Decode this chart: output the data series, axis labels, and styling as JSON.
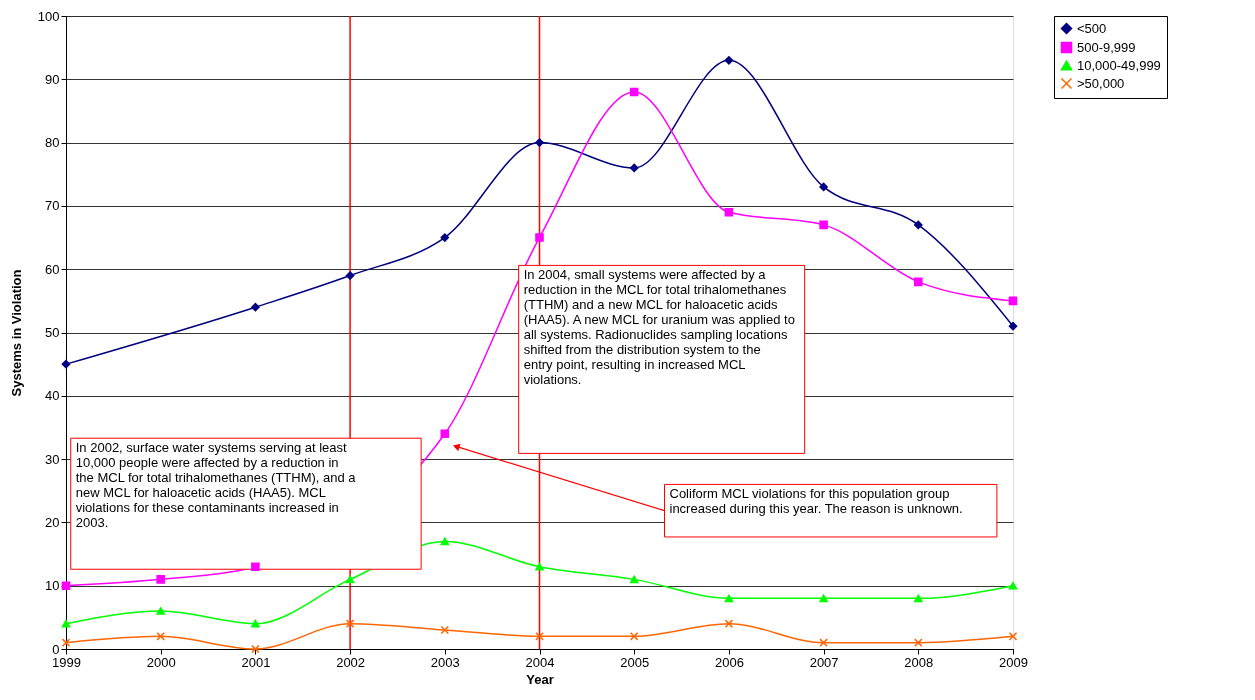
{
  "chart_data": {
    "type": "line",
    "xlabel": "Year",
    "ylabel": "Systems in Violation",
    "x": [
      1999,
      2000,
      2001,
      2002,
      2003,
      2004,
      2005,
      2006,
      2007,
      2008,
      2009
    ],
    "series": [
      {
        "name": "<500",
        "color": "#000080",
        "marker": "diamond",
        "values": [
          45,
          null,
          54,
          59,
          65,
          80,
          76,
          93,
          73,
          67,
          51
        ]
      },
      {
        "name": "500-9,999",
        "color": "#ff00ff",
        "marker": "square",
        "values": [
          10,
          11,
          13,
          null,
          34,
          65,
          88,
          69,
          67,
          58,
          55
        ]
      },
      {
        "name": "10,000-49,999",
        "color": "#00ff00",
        "marker": "triangle",
        "values": [
          4,
          6,
          4,
          11,
          17,
          13,
          11,
          8,
          8,
          8,
          10
        ]
      },
      {
        "name": ">50,000",
        "color": "#ff6600",
        "marker": "cross",
        "values": [
          1,
          2,
          0,
          4,
          3,
          2,
          2,
          4,
          1,
          1,
          2
        ]
      }
    ],
    "xlim": [
      1999,
      2009
    ],
    "xticks": [
      1999,
      2000,
      2001,
      2002,
      2003,
      2004,
      2005,
      2006,
      2007,
      2008,
      2009
    ],
    "ylim": [
      0,
      100
    ],
    "yticks": [
      0,
      10,
      20,
      30,
      40,
      50,
      60,
      70,
      80,
      90,
      100
    ],
    "grid": "y",
    "legend": "right",
    "ref_lines": [
      {
        "axis": "x",
        "value": 2002,
        "color": "#ff0000"
      },
      {
        "axis": "x",
        "value": 2004,
        "color": "#ff0000"
      }
    ],
    "annotations": [
      "In 2002, surface water systems serving at least 10,000 people were affected by a reduction in the MCL for total trihalomethanes (TTHM), and a new MCL for haloacetic acids (HAA5). MCL violations for these contaminants increased in 2003.",
      "In 2004, small systems were affected by a reduction in the MCL for total trihalomethanes (TTHM) and a new MCL for haloacetic acids (HAA5).  A new MCL for uranium was applied to all systems.  Radionuclides sampling locations shifted from the distribution system to the entry point, resulting in increased MCL violations.",
      "Coliform MCL violations for this population group increased during this year.  The reason is unknown."
    ]
  }
}
